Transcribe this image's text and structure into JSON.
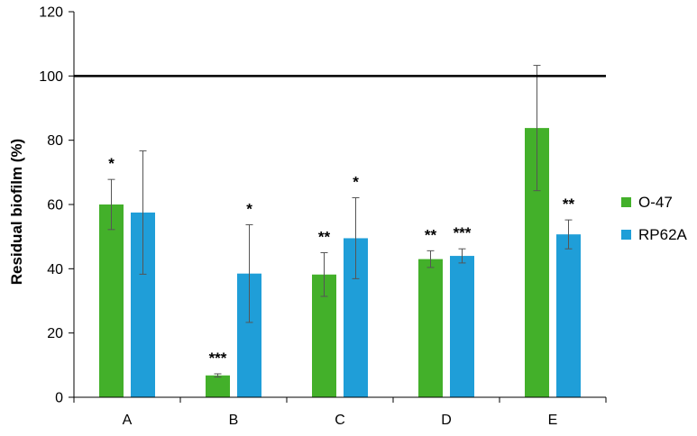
{
  "chart_data": {
    "type": "bar",
    "title": "",
    "xlabel": "",
    "ylabel": "Residual biofilm (%)",
    "ylim": [
      0,
      120
    ],
    "yticks": [
      "0",
      "20",
      "40",
      "60",
      "80",
      "100",
      "120"
    ],
    "reference_line": 100,
    "grid": false,
    "legend_position": "right",
    "categories": [
      "A",
      "B",
      "C",
      "D",
      "E"
    ],
    "series": [
      {
        "name": "O-47",
        "color": "#43b02a",
        "values": [
          60,
          6.8,
          38.2,
          43,
          83.8
        ],
        "error": [
          7.8,
          0.5,
          6.8,
          2.6,
          19.5
        ],
        "significance": [
          "*",
          "***",
          "**",
          "**",
          ""
        ]
      },
      {
        "name": "RP62A",
        "color": "#1f9ed8",
        "values": [
          57.5,
          38.5,
          49.5,
          44,
          50.7
        ],
        "error": [
          19.2,
          15.2,
          12.6,
          2.2,
          4.5
        ],
        "significance": [
          "",
          "*",
          "*",
          "***",
          "**"
        ]
      }
    ]
  }
}
